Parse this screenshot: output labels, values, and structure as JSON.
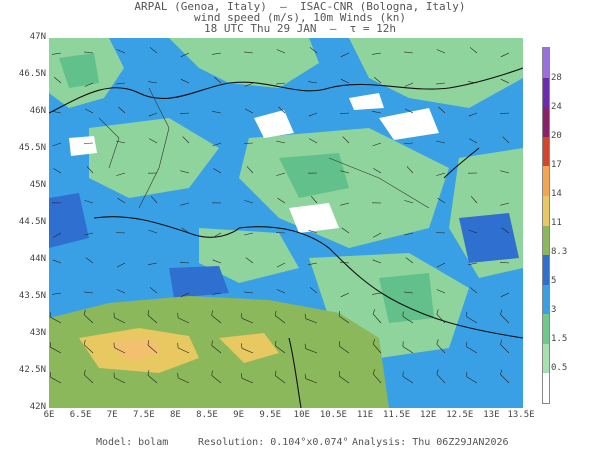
{
  "header": {
    "line1": "ARPAL (Genoa, Italy)  –  ISAC-CNR (Bologna, Italy)",
    "line2": "wind speed (m/s), 10m Winds (kn)",
    "line3": "18 UTC Thu 29 JAN  –  τ = 12h"
  },
  "axes": {
    "lat_labels": [
      "47N",
      "46.5N",
      "46N",
      "45.5N",
      "45N",
      "44.5N",
      "44N",
      "43.5N",
      "43N",
      "42.5N",
      "42N"
    ],
    "lon_labels": [
      "6E",
      "6.5E",
      "7E",
      "7.5E",
      "8E",
      "8.5E",
      "9E",
      "9.5E",
      "10E",
      "10.5E",
      "11E",
      "11.5E",
      "12E",
      "12.5E",
      "13E",
      "13.5E"
    ],
    "lat_range": [
      42,
      47
    ],
    "lon_range": [
      6,
      13.5
    ]
  },
  "colorbar": {
    "labels": [
      "0.5",
      "1.5",
      "3",
      "5",
      "8.3",
      "11",
      "14",
      "17",
      "20",
      "24",
      "28"
    ],
    "colors": [
      "#ffffff",
      "#a8e0b0",
      "#6fc98a",
      "#3aa0e6",
      "#2f6fd0",
      "#8bb85a",
      "#e8c860",
      "#f3a552",
      "#d2442c",
      "#8a1f6a",
      "#6a2bb0",
      "#9a6fe0"
    ]
  },
  "footer": {
    "model": "Model: bolam",
    "resolution": "Resolution: 0.104°x0.074°",
    "analysis": "Analysis: Thu 06Z29JAN2026"
  }
}
